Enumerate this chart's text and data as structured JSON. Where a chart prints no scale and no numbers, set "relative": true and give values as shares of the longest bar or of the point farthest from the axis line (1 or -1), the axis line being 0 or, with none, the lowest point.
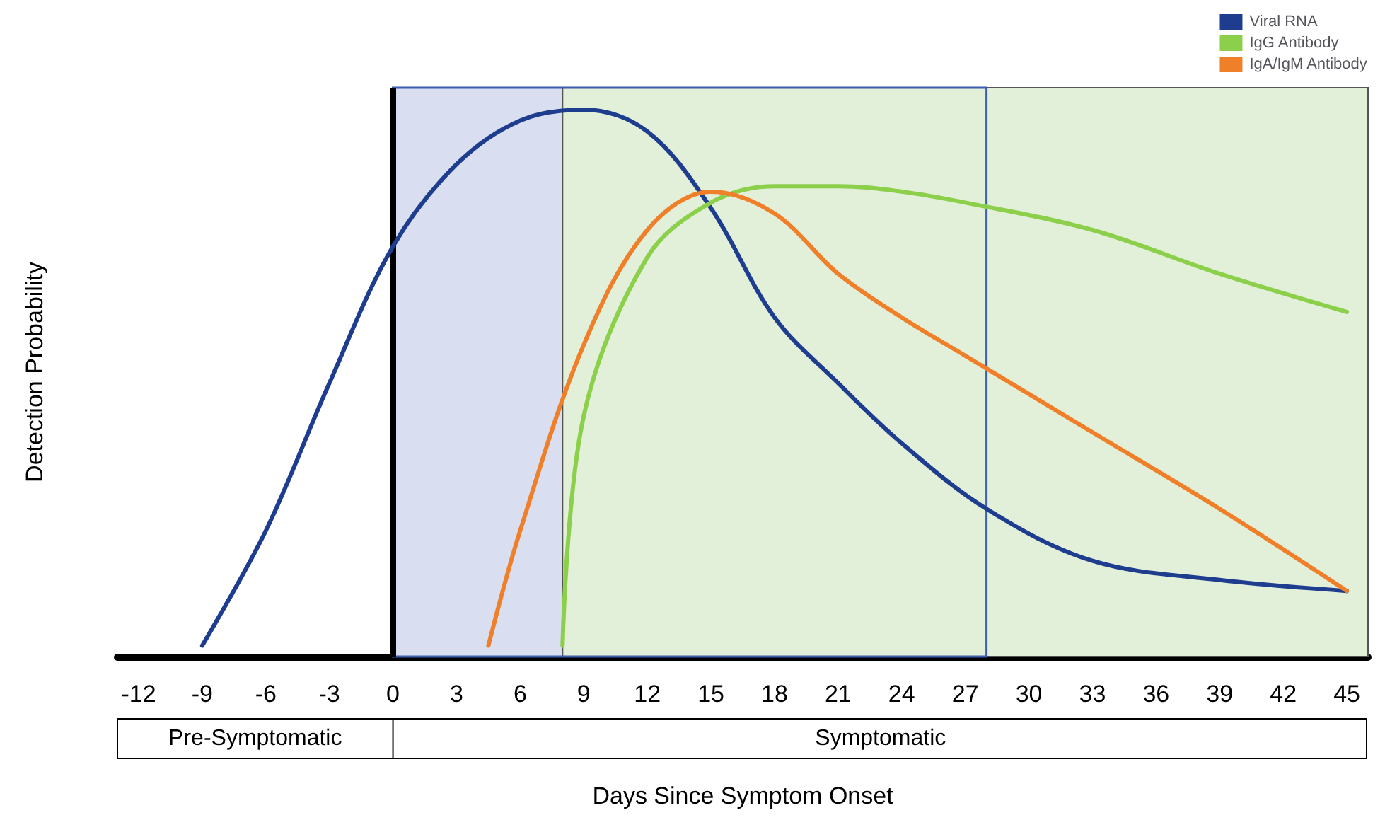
{
  "chart_data": {
    "type": "line",
    "relative": true,
    "xlabel": "Days Since Symptom Onset",
    "ylabel": "Detection Probability",
    "xlim": [
      -13,
      46
    ],
    "xticks": [
      -12,
      -9,
      -6,
      -3,
      0,
      3,
      6,
      9,
      12,
      15,
      18,
      21,
      24,
      27,
      30,
      33,
      36,
      39,
      42,
      45
    ],
    "series": [
      {
        "name": "Viral RNA",
        "color": "#1f3d8f",
        "x": [
          -9,
          -6,
          -3,
          0,
          3,
          6,
          9,
          12,
          15,
          18,
          21,
          24,
          28,
          33,
          39,
          45
        ],
        "values": [
          0.02,
          0.23,
          0.5,
          0.75,
          0.9,
          0.98,
          1.0,
          0.96,
          0.82,
          0.62,
          0.5,
          0.39,
          0.27,
          0.175,
          0.14,
          0.12
        ]
      },
      {
        "name": "IgG Antibody",
        "color": "#8ccf4a",
        "x": [
          8,
          9,
          12,
          15,
          18,
          21,
          24,
          27,
          33,
          39,
          45
        ],
        "values": [
          0.02,
          0.44,
          0.73,
          0.83,
          0.86,
          0.86,
          0.85,
          0.83,
          0.78,
          0.7,
          0.63
        ]
      },
      {
        "name": "IgA/IgM Antibody",
        "color": "#f07f2a",
        "x": [
          4.5,
          6,
          9,
          12,
          15,
          18,
          21,
          24,
          27,
          33,
          39,
          45
        ],
        "values": [
          0.02,
          0.23,
          0.57,
          0.78,
          0.85,
          0.81,
          0.7,
          0.62,
          0.55,
          0.41,
          0.27,
          0.12
        ]
      }
    ],
    "bands": [
      {
        "axis": "x",
        "from": 0,
        "to": 28,
        "color": "#d9dff0"
      },
      {
        "axis": "x",
        "from": 8,
        "to": 46,
        "color": "#e2efd9"
      }
    ],
    "ref_lines": [
      {
        "axis": "x",
        "value": 0,
        "color": "#000000"
      }
    ],
    "annotations": [
      "Pre-Symptomatic",
      "Symptomatic"
    ],
    "legend": "top right",
    "grid": false
  }
}
